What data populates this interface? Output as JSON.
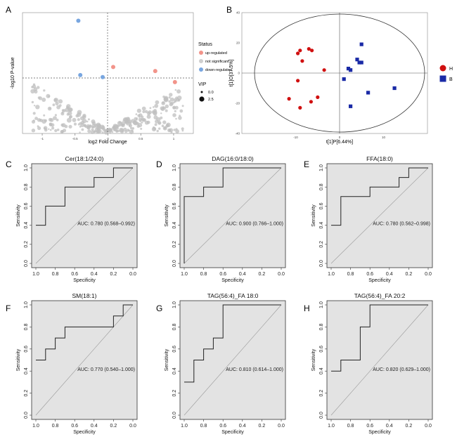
{
  "panel_letters": [
    "A",
    "B",
    "C",
    "D",
    "E",
    "F",
    "G",
    "H"
  ],
  "chart_data": [
    {
      "panel": "A",
      "type": "scatter",
      "xlabel": "log2 Fold Change",
      "ylabel": "-log10 P-value",
      "xlim": [
        -1.3,
        1.3
      ],
      "ylim": [
        0,
        6
      ],
      "xticks": [
        "-1",
        "-0.5",
        "0",
        "0.5",
        "1"
      ],
      "legend": {
        "status_title": "Status",
        "status_items": [
          {
            "label": "up-regulated",
            "color": "#f2948a"
          },
          {
            "label": "not significant",
            "color": "#cfcfcf"
          },
          {
            "label": "down-regulated",
            "color": "#78a6e0"
          }
        ],
        "vip_title": "VIP",
        "vip_items": [
          "0.0",
          "2.5"
        ],
        "placement": "right"
      },
      "threshold_y": 2.5,
      "threshold_x": 0,
      "highlighted_points": [
        {
          "x": -0.45,
          "y": 5.6,
          "status": "down-regulated"
        },
        {
          "x": -0.42,
          "y": 2.9,
          "status": "down-regulated"
        },
        {
          "x": -0.08,
          "y": 2.8,
          "status": "down-regulated"
        },
        {
          "x": 0.08,
          "y": 3.3,
          "status": "up-regulated"
        },
        {
          "x": 0.72,
          "y": 3.1,
          "status": "up-regulated"
        },
        {
          "x": 1.02,
          "y": 2.55,
          "status": "up-regulated"
        }
      ]
    },
    {
      "panel": "B",
      "type": "scatter",
      "xlabel": "t[1]P[6.44%]",
      "ylabel": "t[1]O[37.5%]",
      "xlim": [
        -20,
        20
      ],
      "ylim": [
        -40,
        40
      ],
      "xticks": [
        "-10",
        "0",
        "10"
      ],
      "yticks": [
        "40",
        "20",
        "0",
        "-20",
        "-40"
      ],
      "legend": {
        "placement": "right"
      },
      "series": [
        {
          "name": "H",
          "color": "#d01010",
          "marker": "circle",
          "points": [
            [
              -9,
              15
            ],
            [
              -9.5,
              13
            ],
            [
              -7,
              16
            ],
            [
              -6.3,
              15
            ],
            [
              -8.5,
              8
            ],
            [
              -3.5,
              2
            ],
            [
              -9.5,
              -5
            ],
            [
              -11.5,
              -17
            ],
            [
              -5,
              -16
            ],
            [
              -6.5,
              -19
            ],
            [
              -9,
              -23
            ]
          ]
        },
        {
          "name": "B",
          "color": "#1a2aa6",
          "marker": "square",
          "points": [
            [
              5,
              19
            ],
            [
              4,
              9
            ],
            [
              4.5,
              7
            ],
            [
              5,
              7
            ],
            [
              2,
              3
            ],
            [
              2.5,
              2
            ],
            [
              1,
              -4
            ],
            [
              6.5,
              -13
            ],
            [
              2.5,
              -22
            ],
            [
              12.5,
              -10
            ]
          ]
        }
      ]
    },
    {
      "panel": "C",
      "type": "line",
      "title": "Cer(18:1/24:0)",
      "xlabel": "Specificity",
      "ylabel": "Sensitivity",
      "auc": "AUC: 0.780 (0.568–0.992)",
      "xlim": [
        1.0,
        0.0
      ],
      "ylim": [
        0.0,
        1.0
      ],
      "spec": [
        1.0,
        0.9,
        0.9,
        0.7,
        0.7,
        0.4,
        0.4,
        0.2,
        0.2,
        0.0
      ],
      "sens": [
        0.4,
        0.4,
        0.6,
        0.6,
        0.8,
        0.8,
        0.9,
        0.9,
        1.0,
        1.0
      ]
    },
    {
      "panel": "D",
      "type": "line",
      "title": "DAG(16:0/18:0)",
      "xlabel": "Specificity",
      "ylabel": "Sensitivity",
      "auc": "AUC: 0.900 (0.766–1.000)",
      "xlim": [
        1.0,
        0.0
      ],
      "ylim": [
        0.0,
        1.0
      ],
      "spec": [
        1.0,
        1.0,
        0.8,
        0.8,
        0.6,
        0.6,
        0.0
      ],
      "sens": [
        0.0,
        0.7,
        0.7,
        0.8,
        0.8,
        1.0,
        1.0
      ]
    },
    {
      "panel": "E",
      "type": "line",
      "title": "FFA(18:0)",
      "xlabel": "Specificity",
      "ylabel": "Sensitivity",
      "auc": "AUC: 0.780 (0.562–0.998)",
      "xlim": [
        1.0,
        0.0
      ],
      "ylim": [
        0.0,
        1.0
      ],
      "spec": [
        1.0,
        0.9,
        0.9,
        0.6,
        0.6,
        0.3,
        0.3,
        0.2,
        0.2,
        0.0
      ],
      "sens": [
        0.4,
        0.4,
        0.7,
        0.7,
        0.8,
        0.8,
        0.9,
        0.9,
        1.0,
        1.0
      ]
    },
    {
      "panel": "F",
      "type": "line",
      "title": "SM(18:1)",
      "xlabel": "Specificity",
      "ylabel": "Sensitivity",
      "auc": "AUC: 0.770 (0.540–1.000)",
      "xlim": [
        1.0,
        0.0
      ],
      "ylim": [
        0.0,
        1.0
      ],
      "spec": [
        1.0,
        0.9,
        0.9,
        0.8,
        0.8,
        0.7,
        0.7,
        0.2,
        0.2,
        0.1,
        0.1,
        0.0
      ],
      "sens": [
        0.5,
        0.5,
        0.6,
        0.6,
        0.7,
        0.7,
        0.8,
        0.8,
        0.9,
        0.9,
        1.0,
        1.0
      ]
    },
    {
      "panel": "G",
      "type": "line",
      "title": "TAG(56:4)_FA 18:0",
      "xlabel": "Specificity",
      "ylabel": "Sensitivity",
      "auc": "AUC: 0.810 (0.614–1.000)",
      "xlim": [
        1.0,
        0.0
      ],
      "ylim": [
        0.0,
        1.0
      ],
      "spec": [
        1.0,
        0.9,
        0.9,
        0.8,
        0.8,
        0.7,
        0.7,
        0.6,
        0.6,
        0.0
      ],
      "sens": [
        0.3,
        0.3,
        0.5,
        0.5,
        0.6,
        0.6,
        0.7,
        0.7,
        1.0,
        1.0
      ]
    },
    {
      "panel": "H",
      "type": "line",
      "title": "TAG(56:4)_FA 20:2",
      "xlabel": "Specificity",
      "ylabel": "Sensitivity",
      "auc": "AUC: 0.820 (0.629–1.000)",
      "xlim": [
        1.0,
        0.0
      ],
      "ylim": [
        0.0,
        1.0
      ],
      "spec": [
        1.0,
        0.9,
        0.9,
        0.7,
        0.7,
        0.6,
        0.6,
        0.0
      ],
      "sens": [
        0.4,
        0.4,
        0.5,
        0.5,
        0.8,
        0.8,
        1.0,
        1.0
      ]
    }
  ],
  "roc_xticks": [
    "1.0",
    "0.8",
    "0.6",
    "0.4",
    "0.2",
    "0.0"
  ],
  "roc_yticks": [
    "0.0",
    "0.2",
    "0.4",
    "0.6",
    "0.8",
    "1.0"
  ]
}
